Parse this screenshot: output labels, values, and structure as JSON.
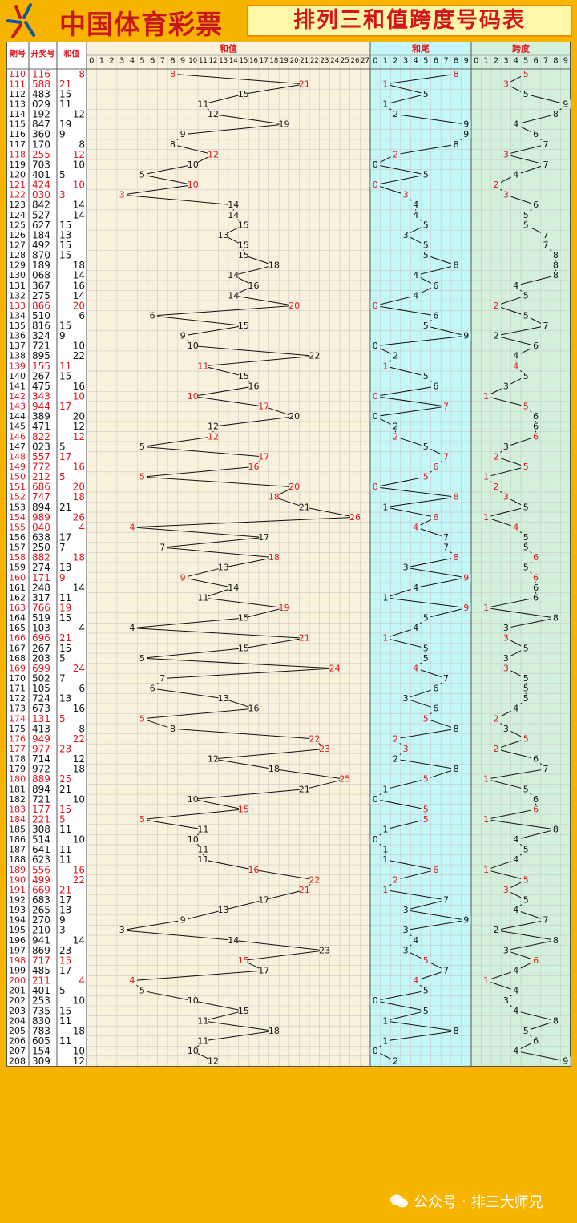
{
  "header": {
    "brand": "中国体育彩票",
    "title": "排列三和值跨度号码表"
  },
  "watermark": {
    "label": "公众号",
    "separator": "·",
    "account": "排三大师兄"
  },
  "colors": {
    "background": "#f6b300",
    "accent_red": "#e0161d",
    "zone_sum": "#f8f2dc",
    "zone_tail": "#c4f8f8",
    "zone_span": "#d2f0da"
  },
  "chart_data": {
    "type": "table",
    "column_headers": [
      "期号",
      "开奖号",
      "和值"
    ],
    "zones": [
      {
        "title": "和值",
        "ticks": [
          "0",
          "1",
          "2",
          "3",
          "4",
          "5",
          "6",
          "7",
          "8",
          "9",
          "10",
          "11",
          "12",
          "13",
          "14",
          "15",
          "16",
          "17",
          "18",
          "19",
          "20",
          "21",
          "22",
          "23",
          "24",
          "25",
          "26",
          "27"
        ]
      },
      {
        "title": "和尾",
        "ticks": [
          "0",
          "1",
          "2",
          "3",
          "4",
          "5",
          "6",
          "7",
          "8",
          "9"
        ]
      },
      {
        "title": "跨度",
        "ticks": [
          "0",
          "1",
          "2",
          "3",
          "4",
          "5",
          "6",
          "7",
          "8",
          "9"
        ]
      }
    ],
    "rows": [
      [
        "110",
        "116",
        8
      ],
      [
        "111",
        "588",
        21
      ],
      [
        "112",
        "483",
        15
      ],
      [
        "113",
        "029",
        11
      ],
      [
        "114",
        "192",
        12
      ],
      [
        "115",
        "847",
        19
      ],
      [
        "116",
        "360",
        9
      ],
      [
        "117",
        "170",
        8
      ],
      [
        "118",
        "255",
        12
      ],
      [
        "119",
        "703",
        10
      ],
      [
        "120",
        "401",
        5
      ],
      [
        "121",
        "424",
        10
      ],
      [
        "122",
        "030",
        3
      ],
      [
        "123",
        "842",
        14
      ],
      [
        "124",
        "527",
        14
      ],
      [
        "125",
        "627",
        15
      ],
      [
        "126",
        "184",
        13
      ],
      [
        "127",
        "492",
        15
      ],
      [
        "128",
        "870",
        15
      ],
      [
        "129",
        "189",
        18
      ],
      [
        "130",
        "068",
        14
      ],
      [
        "131",
        "367",
        16
      ],
      [
        "132",
        "275",
        14
      ],
      [
        "133",
        "866",
        20
      ],
      [
        "134",
        "510",
        6
      ],
      [
        "135",
        "816",
        15
      ],
      [
        "136",
        "324",
        9
      ],
      [
        "137",
        "721",
        10
      ],
      [
        "138",
        "895",
        22
      ],
      [
        "139",
        "155",
        11
      ],
      [
        "140",
        "267",
        15
      ],
      [
        "141",
        "475",
        16
      ],
      [
        "142",
        "343",
        10
      ],
      [
        "143",
        "944",
        17
      ],
      [
        "144",
        "389",
        20
      ],
      [
        "145",
        "471",
        12
      ],
      [
        "146",
        "822",
        12
      ],
      [
        "147",
        "023",
        5
      ],
      [
        "148",
        "557",
        17
      ],
      [
        "149",
        "772",
        16
      ],
      [
        "150",
        "212",
        5
      ],
      [
        "151",
        "686",
        20
      ],
      [
        "152",
        "747",
        18
      ],
      [
        "153",
        "894",
        21
      ],
      [
        "154",
        "989",
        26
      ],
      [
        "155",
        "040",
        4
      ],
      [
        "156",
        "638",
        17
      ],
      [
        "157",
        "250",
        7
      ],
      [
        "158",
        "882",
        18
      ],
      [
        "159",
        "274",
        13
      ],
      [
        "160",
        "171",
        9
      ],
      [
        "161",
        "248",
        14
      ],
      [
        "162",
        "317",
        11
      ],
      [
        "163",
        "766",
        19
      ],
      [
        "164",
        "519",
        15
      ],
      [
        "165",
        "103",
        4
      ],
      [
        "166",
        "696",
        21
      ],
      [
        "167",
        "267",
        15
      ],
      [
        "168",
        "203",
        5
      ],
      [
        "169",
        "699",
        24
      ],
      [
        "170",
        "502",
        7
      ],
      [
        "171",
        "105",
        6
      ],
      [
        "172",
        "724",
        13
      ],
      [
        "173",
        "673",
        16
      ],
      [
        "174",
        "131",
        5
      ],
      [
        "175",
        "413",
        8
      ],
      [
        "176",
        "949",
        22
      ],
      [
        "177",
        "977",
        23
      ],
      [
        "178",
        "714",
        12
      ],
      [
        "179",
        "972",
        18
      ],
      [
        "180",
        "889",
        25
      ],
      [
        "181",
        "894",
        21
      ],
      [
        "182",
        "721",
        10
      ],
      [
        "183",
        "177",
        15
      ],
      [
        "184",
        "221",
        5
      ],
      [
        "185",
        "308",
        11
      ],
      [
        "186",
        "514",
        10
      ],
      [
        "187",
        "641",
        11
      ],
      [
        "188",
        "623",
        11
      ],
      [
        "189",
        "556",
        16
      ],
      [
        "190",
        "499",
        22
      ],
      [
        "191",
        "669",
        21
      ],
      [
        "192",
        "683",
        17
      ],
      [
        "193",
        "265",
        13
      ],
      [
        "194",
        "270",
        9
      ],
      [
        "195",
        "210",
        3
      ],
      [
        "196",
        "941",
        14
      ],
      [
        "197",
        "869",
        23
      ],
      [
        "198",
        "717",
        15
      ],
      [
        "199",
        "485",
        17
      ],
      [
        "200",
        "211",
        4
      ],
      [
        "201",
        "401",
        5
      ],
      [
        "202",
        "253",
        10
      ],
      [
        "203",
        "735",
        15
      ],
      [
        "204",
        "830",
        11
      ],
      [
        "205",
        "783",
        18
      ],
      [
        "206",
        "605",
        11
      ],
      [
        "207",
        "154",
        10
      ],
      [
        "208",
        "309",
        12
      ]
    ]
  }
}
